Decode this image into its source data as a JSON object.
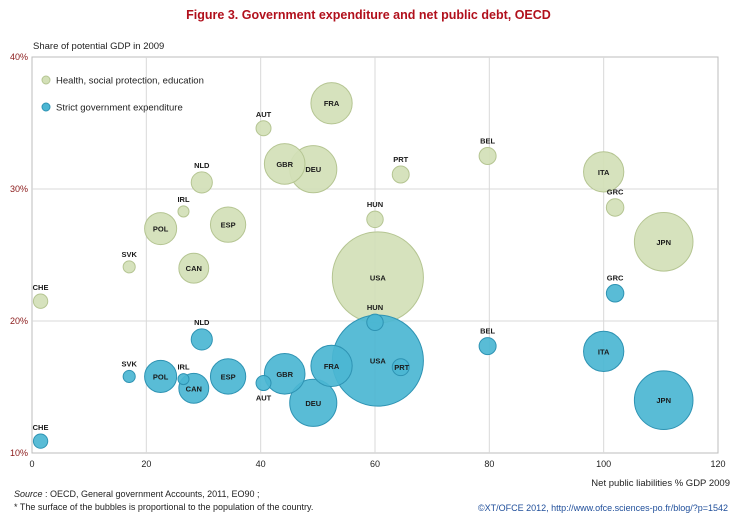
{
  "chart_data": {
    "type": "scatter",
    "title": "Figure 3. Government expenditure and net public debt, OECD",
    "ylabel": "Share of potential GDP in 2009",
    "xlabel": "Net public liabilities % GDP 2009",
    "xlim": [
      0,
      120
    ],
    "ylim": [
      10,
      40
    ],
    "x_ticks": [
      "0",
      "20",
      "40",
      "60",
      "80",
      "100",
      "120"
    ],
    "y_ticks": [
      "10%",
      "20%",
      "30%",
      "40%"
    ],
    "grid": true,
    "legend_position": "top-left",
    "note": "Bubble area proportional to country population",
    "series": [
      {
        "name": "Health, social protection, education",
        "color": "#d3e0b7",
        "stroke": "#b5c592",
        "points": [
          {
            "label": "CHE",
            "x": 1.5,
            "y": 21.5,
            "size": 7.6
          },
          {
            "label": "SVK",
            "x": 17,
            "y": 24.1,
            "size": 5.4
          },
          {
            "label": "POL",
            "x": 22.5,
            "y": 27.0,
            "size": 38
          },
          {
            "label": "IRL",
            "x": 26.5,
            "y": 28.3,
            "size": 4.5
          },
          {
            "label": "CAN",
            "x": 28.3,
            "y": 24.0,
            "size": 33
          },
          {
            "label": "NLD",
            "x": 29.7,
            "y": 30.5,
            "size": 16.5
          },
          {
            "label": "ESP",
            "x": 34.3,
            "y": 27.3,
            "size": 46
          },
          {
            "label": "AUT",
            "x": 40.5,
            "y": 34.6,
            "size": 8.3
          },
          {
            "label": "GBR",
            "x": 44.2,
            "y": 31.9,
            "size": 61
          },
          {
            "label": "DEU",
            "x": 49.2,
            "y": 31.5,
            "size": 82
          },
          {
            "label": "FRA",
            "x": 52.4,
            "y": 36.5,
            "size": 63
          },
          {
            "label": "HUN",
            "x": 60,
            "y": 27.7,
            "size": 10
          },
          {
            "label": "USA",
            "x": 60.5,
            "y": 23.3,
            "size": 307
          },
          {
            "label": "PRT",
            "x": 64.5,
            "y": 31.1,
            "size": 10.6
          },
          {
            "label": "BEL",
            "x": 79.7,
            "y": 32.5,
            "size": 10.7
          },
          {
            "label": "ITA",
            "x": 100,
            "y": 31.3,
            "size": 60
          },
          {
            "label": "GRC",
            "x": 102,
            "y": 28.6,
            "size": 11.3
          },
          {
            "label": "JPN",
            "x": 110.5,
            "y": 26.0,
            "size": 127
          }
        ]
      },
      {
        "name": "Strict government expenditure",
        "color": "#4bb6d3",
        "stroke": "#2e93b3",
        "points": [
          {
            "label": "CHE",
            "x": 1.5,
            "y": 10.9,
            "size": 7.6
          },
          {
            "label": "SVK",
            "x": 17,
            "y": 15.8,
            "size": 5.4
          },
          {
            "label": "POL",
            "x": 22.5,
            "y": 15.8,
            "size": 38
          },
          {
            "label": "IRL",
            "x": 26.5,
            "y": 15.6,
            "size": 4.5
          },
          {
            "label": "CAN",
            "x": 28.3,
            "y": 14.9,
            "size": 33
          },
          {
            "label": "NLD",
            "x": 29.7,
            "y": 18.6,
            "size": 16.5
          },
          {
            "label": "ESP",
            "x": 34.3,
            "y": 15.8,
            "size": 46
          },
          {
            "label": "AUT",
            "x": 40.5,
            "y": 15.3,
            "size": 8.3
          },
          {
            "label": "GBR",
            "x": 44.2,
            "y": 16.0,
            "size": 61
          },
          {
            "label": "DEU",
            "x": 49.2,
            "y": 13.8,
            "size": 82
          },
          {
            "label": "FRA",
            "x": 52.4,
            "y": 16.6,
            "size": 63
          },
          {
            "label": "HUN",
            "x": 60,
            "y": 19.9,
            "size": 10
          },
          {
            "label": "USA",
            "x": 60.5,
            "y": 17.0,
            "size": 307
          },
          {
            "label": "PRT",
            "x": 64.5,
            "y": 16.5,
            "size": 10.6
          },
          {
            "label": "BEL",
            "x": 79.7,
            "y": 18.1,
            "size": 10.7
          },
          {
            "label": "ITA",
            "x": 100,
            "y": 17.7,
            "size": 60
          },
          {
            "label": "GRC",
            "x": 102,
            "y": 22.1,
            "size": 11.3
          },
          {
            "label": "JPN",
            "x": 110.5,
            "y": 14.0,
            "size": 127
          }
        ]
      }
    ]
  },
  "footer": {
    "source_label": "Source",
    "source_text": " : OECD,  General government Accounts, 2011, EO90 ;",
    "note": "* The surface of the bubbles is proportional to the population of the country.",
    "credit": "©XT/OFCE 2012, http://www.ofce.sciences-po.fr/blog/?p=1542"
  }
}
